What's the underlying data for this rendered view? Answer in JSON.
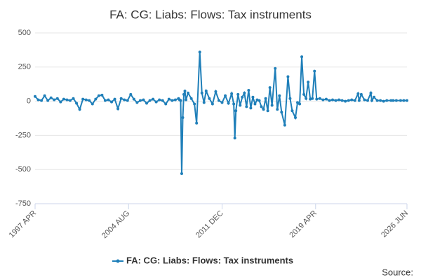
{
  "chart_data": {
    "type": "line",
    "title": "FA: CG: Liabs: Flows: Tax instruments",
    "source": "Source:",
    "x": [
      "1997 APR",
      "1997 JUL",
      "1997 OCT",
      "1998 JAN",
      "1998 APR",
      "1998 JUL",
      "1998 OCT",
      "1999 JAN",
      "1999 APR",
      "1999 JUL",
      "1999 OCT",
      "2000 JAN",
      "2000 APR",
      "2000 JUL",
      "2000 OCT",
      "2001 JAN",
      "2001 APR",
      "2001 JUL",
      "2001 OCT",
      "2002 JAN",
      "2002 APR",
      "2002 JUL",
      "2002 OCT",
      "2003 JAN",
      "2003 APR",
      "2003 JUL",
      "2003 OCT",
      "2004 JAN",
      "2004 APR",
      "2004 JUL",
      "2004 OCT",
      "2005 JAN",
      "2005 APR",
      "2005 JUL",
      "2005 OCT",
      "2006 JAN",
      "2006 APR",
      "2006 JUL",
      "2006 OCT",
      "2007 JAN",
      "2007 APR",
      "2007 JUL",
      "2007 OCT",
      "2008 JAN",
      "2008 APR",
      "2008 JUL",
      "2008 AUG",
      "2008 SEP",
      "2008 OCT",
      "2008 NOV",
      "2008 DEC",
      "2009 JAN",
      "2009 FEB",
      "2009 APR",
      "2009 JUL",
      "2009 OCT",
      "2009 DEC",
      "2010 MAR",
      "2010 MAY",
      "2010 JUL",
      "2010 SEP",
      "2010 DEC",
      "2011 MAR",
      "2011 JUN",
      "2011 SEP",
      "2011 DEC",
      "2012 MAR",
      "2012 JUN",
      "2012 SEP",
      "2012 NOV",
      "2012 DEC",
      "2013 JAN",
      "2013 MAR",
      "2013 MAY",
      "2013 JUL",
      "2013 SEP",
      "2013 NOV",
      "2014 JAN",
      "2014 MAR",
      "2014 MAY",
      "2014 JUL",
      "2014 SEP",
      "2014 NOV",
      "2015 JAN",
      "2015 MAR",
      "2015 MAY",
      "2015 JUL",
      "2015 SEP",
      "2015 NOV",
      "2016 FEB",
      "2016 APR",
      "2016 JUN",
      "2016 AUG",
      "2016 NOV",
      "2017 FEB",
      "2017 APR",
      "2017 JUN",
      "2017 SEP",
      "2017 NOV",
      "2018 JAN",
      "2018 MAR",
      "2018 MAY",
      "2018 JUL",
      "2018 SEP",
      "2018 NOV",
      "2019 JAN",
      "2019 MAR",
      "2019 MAY",
      "2019 AUG",
      "2019 NOV",
      "2020 FEB",
      "2020 MAY",
      "2020 AUG",
      "2020 NOV",
      "2021 FEB",
      "2021 MAY",
      "2021 AUG",
      "2021 NOV",
      "2022 FEB",
      "2022 MAY",
      "2022 AUG",
      "2022 SEP",
      "2022 NOV",
      "2023 FEB",
      "2023 MAY",
      "2023 AUG",
      "2023 SEP",
      "2023 NOV",
      "2024 FEB",
      "2024 MAY",
      "2024 AUG",
      "2024 NOV",
      "2025 MAR",
      "2025 MAY",
      "2025 AUG",
      "2025 DEC",
      "2026 MAR",
      "2026 JUN"
    ],
    "series": [
      {
        "name": "FA: CG: Liabs: Flows: Tax instruments",
        "color": "#1f7fb9",
        "values": [
          35,
          10,
          5,
          40,
          5,
          25,
          10,
          20,
          -5,
          15,
          10,
          5,
          20,
          -15,
          -60,
          15,
          10,
          5,
          -20,
          15,
          40,
          45,
          5,
          10,
          -5,
          15,
          -55,
          20,
          10,
          5,
          50,
          15,
          -10,
          5,
          10,
          -15,
          5,
          15,
          -5,
          10,
          5,
          -20,
          15,
          5,
          10,
          20,
          10,
          5,
          -530,
          -120,
          50,
          75,
          10,
          60,
          20,
          -20,
          -160,
          360,
          60,
          -10,
          75,
          20,
          -20,
          70,
          5,
          -10,
          40,
          -15,
          55,
          -20,
          -270,
          -70,
          50,
          -30,
          30,
          60,
          -40,
          80,
          -50,
          30,
          -20,
          10,
          5,
          -40,
          -60,
          20,
          -70,
          100,
          -30,
          240,
          -60,
          40,
          -80,
          -175,
          180,
          20,
          -70,
          -120,
          -10,
          -20,
          325,
          50,
          20,
          140,
          15,
          20,
          220,
          15,
          20,
          10,
          15,
          5,
          10,
          5,
          10,
          5,
          0,
          5,
          10,
          5,
          55,
          5,
          50,
          10,
          5,
          60,
          5,
          30,
          5,
          5,
          0,
          5,
          5,
          5,
          5,
          5,
          5,
          5
        ]
      }
    ],
    "xlim": [
      "1997 APR",
      "2026 JUN"
    ],
    "xticks": [
      "1997 APR",
      "2004 AUG",
      "2011 DEC",
      "2019 APR",
      "2026 JUN"
    ],
    "ylim": [
      -750,
      500
    ],
    "yticks": [
      -750,
      -500,
      -250,
      0,
      250,
      500
    ],
    "grid": true
  }
}
